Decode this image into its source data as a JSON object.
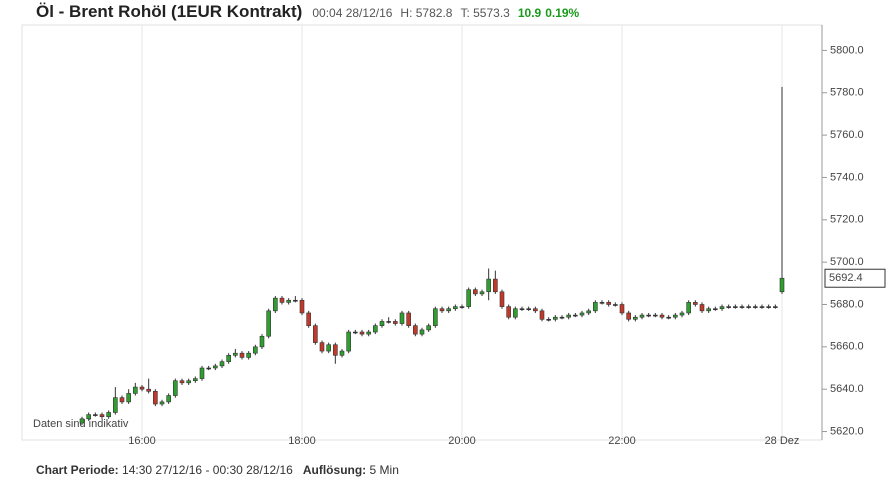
{
  "header": {
    "title": "Öl - Brent Rohöl (1EUR Kontrakt)",
    "time": "00:04 28/12/16",
    "high": "H: 5782.8",
    "low": "T: 5573.3",
    "change": "10.9",
    "change_pct": "0.19%"
  },
  "footer": {
    "period_label": "Chart Periode:",
    "period": "14:30 27/12/16 - 00:30 28/12/16",
    "resolution_label": "Auflösung:",
    "resolution": "5 Min"
  },
  "chart_data": {
    "type": "candlestick",
    "note": "Daten sind indikativ",
    "xlim": [
      870,
      1470
    ],
    "xticks": [
      {
        "value": 960,
        "label": "16:00"
      },
      {
        "value": 1080,
        "label": "18:00"
      },
      {
        "value": 1200,
        "label": "20:00"
      },
      {
        "value": 1320,
        "label": "22:00"
      },
      {
        "value": 1440,
        "label": "28 Dez"
      }
    ],
    "ylim": [
      5616,
      5812
    ],
    "yticks": [
      {
        "value": 5620,
        "label": "5620.0"
      },
      {
        "value": 5640,
        "label": "5640.0"
      },
      {
        "value": 5660,
        "label": "5660.0"
      },
      {
        "value": 5680,
        "label": "5680.0"
      },
      {
        "value": 5700,
        "label": "5700.0"
      },
      {
        "value": 5720,
        "label": "5720.0"
      },
      {
        "value": 5740,
        "label": "5740.0"
      },
      {
        "value": 5760,
        "label": "5760.0"
      },
      {
        "value": 5780,
        "label": "5780.0"
      },
      {
        "value": 5800,
        "label": "5800.0"
      }
    ],
    "x_start": 915,
    "x_step": 5,
    "up_color": "#2e9e2e",
    "down_color": "#c0392b",
    "grid": true,
    "ohlc": [
      [
        5624,
        5627,
        5623,
        5626
      ],
      [
        5626,
        5629,
        5625,
        5628
      ],
      [
        5628,
        5629,
        5627,
        5628
      ],
      [
        5628,
        5629,
        5626,
        5627
      ],
      [
        5627,
        5630,
        5626,
        5629
      ],
      [
        5629,
        5641,
        5628,
        5636
      ],
      [
        5636,
        5637,
        5633,
        5634
      ],
      [
        5634,
        5640,
        5633,
        5638
      ],
      [
        5638,
        5643,
        5637,
        5641
      ],
      [
        5641,
        5642,
        5639,
        5640
      ],
      [
        5640,
        5645,
        5638,
        5639
      ],
      [
        5639,
        5640,
        5632,
        5633
      ],
      [
        5633,
        5635,
        5632,
        5634
      ],
      [
        5634,
        5638,
        5633,
        5637
      ],
      [
        5637,
        5645,
        5636,
        5644
      ],
      [
        5644,
        5645,
        5642,
        5643
      ],
      [
        5643,
        5645,
        5642,
        5644
      ],
      [
        5644,
        5646,
        5643,
        5645
      ],
      [
        5645,
        5651,
        5644,
        5650
      ],
      [
        5650,
        5651,
        5649,
        5650
      ],
      [
        5650,
        5652,
        5649,
        5651
      ],
      [
        5651,
        5654,
        5650,
        5653
      ],
      [
        5653,
        5657,
        5652,
        5656
      ],
      [
        5656,
        5659,
        5655,
        5657
      ],
      [
        5657,
        5658,
        5654,
        5655
      ],
      [
        5655,
        5658,
        5654,
        5657
      ],
      [
        5657,
        5661,
        5656,
        5660
      ],
      [
        5660,
        5666,
        5659,
        5665
      ],
      [
        5665,
        5678,
        5664,
        5677
      ],
      [
        5677,
        5684,
        5676,
        5683
      ],
      [
        5683,
        5684,
        5680,
        5681
      ],
      [
        5681,
        5683,
        5680,
        5682
      ],
      [
        5682,
        5684,
        5681,
        5682
      ],
      [
        5682,
        5683,
        5675,
        5676
      ],
      [
        5676,
        5677,
        5669,
        5670
      ],
      [
        5670,
        5671,
        5661,
        5662
      ],
      [
        5662,
        5663,
        5657,
        5658
      ],
      [
        5658,
        5662,
        5657,
        5661
      ],
      [
        5661,
        5662,
        5652,
        5656
      ],
      [
        5656,
        5659,
        5655,
        5658
      ],
      [
        5658,
        5668,
        5657,
        5667
      ],
      [
        5667,
        5668,
        5666,
        5667
      ],
      [
        5667,
        5668,
        5665,
        5666
      ],
      [
        5666,
        5668,
        5665,
        5667
      ],
      [
        5667,
        5671,
        5666,
        5670
      ],
      [
        5670,
        5673,
        5669,
        5672
      ],
      [
        5672,
        5674,
        5671,
        5672
      ],
      [
        5672,
        5673,
        5670,
        5671
      ],
      [
        5671,
        5677,
        5670,
        5676
      ],
      [
        5676,
        5677,
        5669,
        5670
      ],
      [
        5670,
        5671,
        5665,
        5666
      ],
      [
        5666,
        5669,
        5665,
        5668
      ],
      [
        5668,
        5671,
        5667,
        5670
      ],
      [
        5670,
        5679,
        5669,
        5678
      ],
      [
        5678,
        5679,
        5676,
        5677
      ],
      [
        5677,
        5679,
        5676,
        5678
      ],
      [
        5678,
        5680,
        5677,
        5679
      ],
      [
        5679,
        5680,
        5678,
        5679
      ],
      [
        5679,
        5688,
        5678,
        5687
      ],
      [
        5687,
        5688,
        5684,
        5685
      ],
      [
        5685,
        5687,
        5684,
        5686
      ],
      [
        5686,
        5697,
        5682,
        5692
      ],
      [
        5692,
        5696,
        5685,
        5686
      ],
      [
        5686,
        5687,
        5678,
        5679
      ],
      [
        5679,
        5680,
        5673,
        5674
      ],
      [
        5674,
        5679,
        5673,
        5678
      ],
      [
        5678,
        5679,
        5677,
        5678
      ],
      [
        5678,
        5679,
        5677,
        5678
      ],
      [
        5678,
        5679,
        5676,
        5677
      ],
      [
        5677,
        5678,
        5672,
        5673
      ],
      [
        5673,
        5674,
        5672,
        5673
      ],
      [
        5673,
        5675,
        5672,
        5674
      ],
      [
        5674,
        5675,
        5673,
        5674
      ],
      [
        5674,
        5676,
        5673,
        5675
      ],
      [
        5675,
        5676,
        5674,
        5675
      ],
      [
        5675,
        5677,
        5674,
        5676
      ],
      [
        5676,
        5678,
        5675,
        5677
      ],
      [
        5677,
        5682,
        5676,
        5681
      ],
      [
        5681,
        5682,
        5680,
        5681
      ],
      [
        5681,
        5682,
        5679,
        5680
      ],
      [
        5680,
        5681,
        5679,
        5680
      ],
      [
        5680,
        5681,
        5675,
        5676
      ],
      [
        5676,
        5677,
        5672,
        5673
      ],
      [
        5673,
        5675,
        5672,
        5674
      ],
      [
        5674,
        5676,
        5673,
        5675
      ],
      [
        5675,
        5676,
        5674,
        5675
      ],
      [
        5675,
        5676,
        5674,
        5675
      ],
      [
        5675,
        5676,
        5673,
        5674
      ],
      [
        5674,
        5675,
        5673,
        5674
      ],
      [
        5674,
        5676,
        5673,
        5675
      ],
      [
        5675,
        5677,
        5674,
        5676
      ],
      [
        5676,
        5682,
        5675,
        5681
      ],
      [
        5681,
        5682,
        5679,
        5680
      ],
      [
        5680,
        5681,
        5676,
        5677
      ],
      [
        5677,
        5679,
        5676,
        5678
      ],
      [
        5678,
        5679,
        5677,
        5678
      ],
      [
        5678,
        5680,
        5677,
        5679
      ],
      [
        5679,
        5680,
        5678,
        5679
      ],
      [
        5679,
        5680,
        5678,
        5679
      ],
      [
        5679,
        5680,
        5678,
        5679
      ],
      [
        5679,
        5680,
        5678,
        5679
      ],
      [
        5679,
        5680,
        5678,
        5679
      ],
      [
        5679,
        5680,
        5678,
        5679
      ],
      [
        5679,
        5680,
        5678,
        5679
      ],
      [
        5679,
        5680,
        5678,
        5679
      ],
      [
        5686,
        5782.8,
        5685,
        5692.4
      ]
    ]
  }
}
